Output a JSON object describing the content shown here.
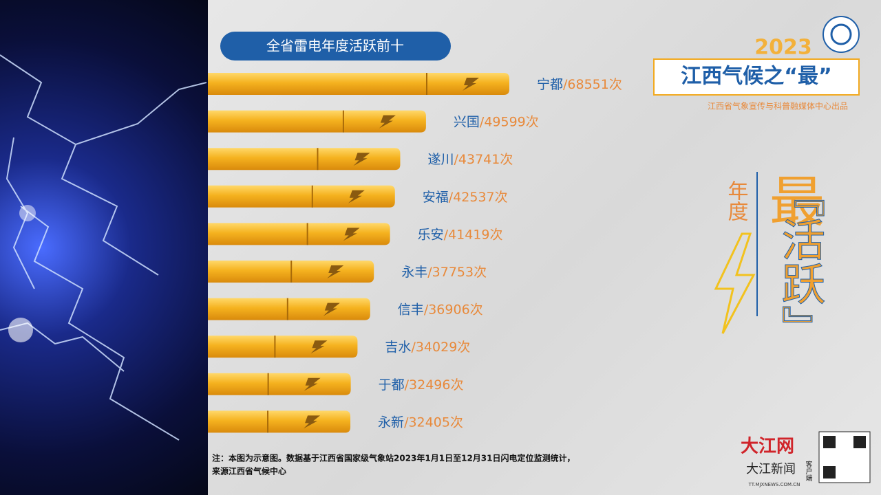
{
  "chart_data": {
    "type": "bar",
    "orientation": "horizontal",
    "title": "全省雷电年度活跃前十",
    "categories": [
      "宁都",
      "兴国",
      "遂川",
      "安福",
      "乐安",
      "永丰",
      "信丰",
      "吉水",
      "于都",
      "永新"
    ],
    "values": [
      68551,
      49599,
      43741,
      42537,
      41419,
      37753,
      36906,
      34029,
      32496,
      32405
    ],
    "value_labels": [
      "68551次",
      "49599次",
      "43741次",
      "42537次",
      "41419次",
      "37753次",
      "36906次",
      "34029次",
      "32496次",
      "32405次"
    ],
    "label_separator": "/",
    "color": "#f2a91e",
    "category_color": "#1f5fa8",
    "value_label_color": "#e8893a",
    "note": [
      "注：本图为示意图。数据基于江西省国家级气象站2023年1月1日至12月31日闪电定位监测统计，",
      "来源江西省气候中心"
    ]
  },
  "header": {
    "year": "2023",
    "title": "江西气候之“最”",
    "producer": "江西省气象宣传与科普融媒体中心出品"
  },
  "side": {
    "small": "年度",
    "big": "最",
    "active": "『活跃』"
  },
  "footer": {
    "brand": "大江网",
    "app": "大江新闻",
    "client": "客户端",
    "url": "TT.MJXNEWS.COM.CN"
  }
}
